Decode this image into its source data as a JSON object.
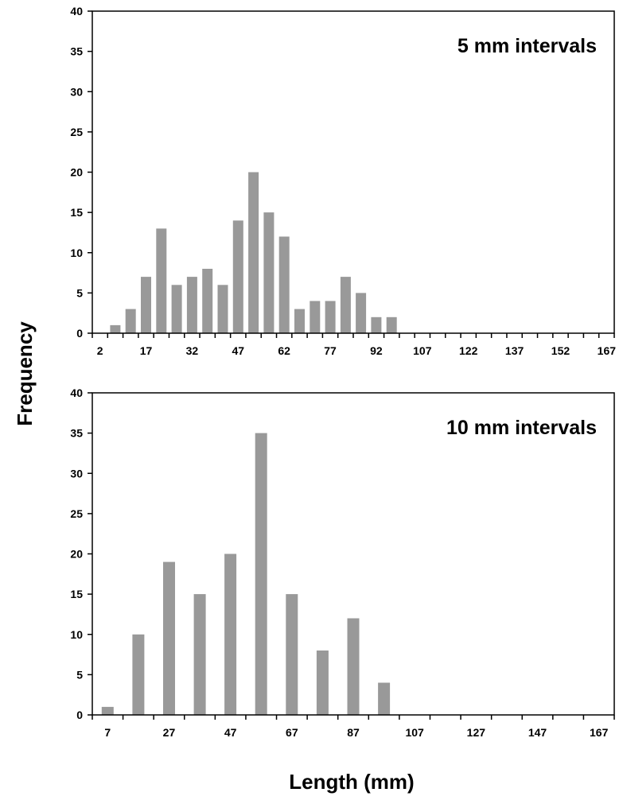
{
  "ylabel": "Frequency",
  "xlabel": "Length (mm)",
  "chart_data": [
    {
      "type": "bar",
      "title": "5 mm intervals",
      "ylim": [
        0,
        40
      ],
      "yticks": [
        "0",
        "5",
        "10",
        "15",
        "20",
        "25",
        "30",
        "35",
        "40"
      ],
      "xticks": [
        "2",
        "17",
        "32",
        "47",
        "62",
        "77",
        "92",
        "107",
        "122",
        "137",
        "152",
        "167"
      ],
      "categories": [
        2,
        7,
        12,
        17,
        22,
        27,
        32,
        37,
        42,
        47,
        52,
        57,
        62,
        67,
        72,
        77,
        82,
        87,
        92,
        97,
        102,
        107,
        112,
        117,
        122,
        127,
        132,
        137,
        142,
        147,
        152,
        157,
        162,
        167
      ],
      "values": [
        0,
        1,
        3,
        7,
        13,
        6,
        7,
        8,
        6,
        14,
        20,
        15,
        12,
        3,
        4,
        4,
        7,
        5,
        2,
        2,
        0,
        0,
        0,
        0,
        0,
        0,
        0,
        0,
        0,
        0,
        0,
        0,
        0,
        0
      ],
      "bar_color": "#999999",
      "grid": false
    },
    {
      "type": "bar",
      "title": "10 mm intervals",
      "ylim": [
        0,
        40
      ],
      "yticks": [
        "0",
        "5",
        "10",
        "15",
        "20",
        "25",
        "30",
        "35",
        "40"
      ],
      "xticks": [
        "7",
        "27",
        "47",
        "67",
        "87",
        "107",
        "127",
        "147",
        "167"
      ],
      "categories": [
        7,
        17,
        27,
        37,
        47,
        57,
        67,
        77,
        87,
        97,
        107,
        117,
        127,
        137,
        147,
        157,
        167
      ],
      "values": [
        1,
        10,
        19,
        15,
        20,
        35,
        15,
        8,
        12,
        4,
        0,
        0,
        0,
        0,
        0,
        0,
        0
      ],
      "bar_color": "#999999",
      "grid": false
    }
  ]
}
